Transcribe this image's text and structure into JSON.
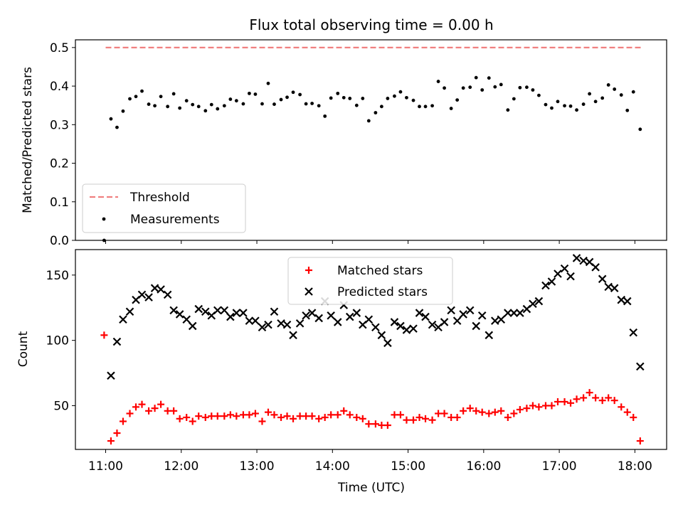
{
  "title": "Flux total observing time = 0.00 h",
  "xlabel": "Time (UTC)",
  "x_ticks": [
    "11:00",
    "12:00",
    "13:00",
    "14:00",
    "15:00",
    "16:00",
    "17:00",
    "18:00"
  ],
  "chart_data": [
    {
      "type": "scatter",
      "title": "Flux total observing time = 0.00 h",
      "ylabel": "Matched/Predicted stars",
      "xlabel": "Time (UTC)",
      "x_unit": "hours UTC",
      "xlim": [
        10.6,
        18.42
      ],
      "ylim": [
        0,
        0.52
      ],
      "y_ticks": [
        "0.0",
        "0.1",
        "0.2",
        "0.3",
        "0.4",
        "0.5"
      ],
      "legend": {
        "placement": "lower-left",
        "entries": [
          "Threshold",
          "Measurements"
        ]
      },
      "threshold": {
        "name": "Threshold",
        "value": 0.5,
        "x_range": [
          11.0,
          18.08
        ],
        "color": "#f08080",
        "style": "dashed"
      },
      "series": [
        {
          "name": "Measurements",
          "color": "#000000",
          "marker": "dot",
          "x": [
            10.98,
            11.07,
            11.15,
            11.23,
            11.32,
            11.4,
            11.48,
            11.57,
            11.65,
            11.73,
            11.82,
            11.9,
            11.98,
            12.07,
            12.15,
            12.23,
            12.32,
            12.4,
            12.48,
            12.57,
            12.65,
            12.73,
            12.82,
            12.9,
            12.98,
            13.07,
            13.15,
            13.23,
            13.32,
            13.4,
            13.48,
            13.57,
            13.65,
            13.73,
            13.82,
            13.9,
            13.98,
            14.07,
            14.15,
            14.23,
            14.32,
            14.4,
            14.48,
            14.57,
            14.65,
            14.73,
            14.82,
            14.9,
            14.98,
            15.07,
            15.15,
            15.23,
            15.32,
            15.4,
            15.48,
            15.57,
            15.65,
            15.73,
            15.82,
            15.9,
            15.98,
            16.07,
            16.15,
            16.23,
            16.32,
            16.4,
            16.48,
            16.57,
            16.65,
            16.73,
            16.82,
            16.9,
            16.98,
            17.07,
            17.15,
            17.23,
            17.32,
            17.4,
            17.48,
            17.57,
            17.65,
            17.73,
            17.82,
            17.9,
            17.98,
            18.07
          ],
          "y": [
            0.0,
            0.315,
            0.293,
            0.335,
            0.367,
            0.373,
            0.387,
            0.353,
            0.349,
            0.373,
            0.347,
            0.38,
            0.343,
            0.362,
            0.352,
            0.347,
            0.336,
            0.352,
            0.341,
            0.349,
            0.366,
            0.362,
            0.354,
            0.381,
            0.379,
            0.354,
            0.407,
            0.353,
            0.365,
            0.371,
            0.384,
            0.378,
            0.354,
            0.355,
            0.349,
            0.322,
            0.369,
            0.381,
            0.37,
            0.368,
            0.35,
            0.368,
            0.31,
            0.331,
            0.347,
            0.368,
            0.374,
            0.385,
            0.37,
            0.363,
            0.347,
            0.347,
            0.349,
            0.412,
            0.395,
            0.342,
            0.364,
            0.395,
            0.397,
            0.422,
            0.39,
            0.421,
            0.398,
            0.404,
            0.338,
            0.367,
            0.396,
            0.397,
            0.39,
            0.376,
            0.352,
            0.343,
            0.36,
            0.349,
            0.348,
            0.338,
            0.353,
            0.38,
            0.36,
            0.369,
            0.403,
            0.392,
            0.377,
            0.337,
            0.385,
            0.288
          ]
        }
      ]
    },
    {
      "type": "scatter",
      "ylabel": "Count",
      "xlabel": "Time (UTC)",
      "x_unit": "hours UTC",
      "xlim": [
        10.6,
        18.42
      ],
      "ylim": [
        16.5,
        169.5
      ],
      "y_ticks": [
        "50",
        "100",
        "150"
      ],
      "legend": {
        "placement": "top-center",
        "entries": [
          "Matched stars",
          "Predicted stars"
        ]
      },
      "series": [
        {
          "name": "Matched stars",
          "color": "#ff0000",
          "marker": "plus",
          "x": [
            10.98,
            11.07,
            11.15,
            11.23,
            11.32,
            11.4,
            11.48,
            11.57,
            11.65,
            11.73,
            11.82,
            11.9,
            11.98,
            12.07,
            12.15,
            12.23,
            12.32,
            12.4,
            12.48,
            12.57,
            12.65,
            12.73,
            12.82,
            12.9,
            12.98,
            13.07,
            13.15,
            13.23,
            13.32,
            13.4,
            13.48,
            13.57,
            13.65,
            13.73,
            13.82,
            13.9,
            13.98,
            14.07,
            14.15,
            14.23,
            14.32,
            14.4,
            14.48,
            14.57,
            14.65,
            14.73,
            14.82,
            14.9,
            14.98,
            15.07,
            15.15,
            15.23,
            15.32,
            15.4,
            15.48,
            15.57,
            15.65,
            15.73,
            15.82,
            15.9,
            15.98,
            16.07,
            16.15,
            16.23,
            16.32,
            16.4,
            16.48,
            16.57,
            16.65,
            16.73,
            16.82,
            16.9,
            16.98,
            17.07,
            17.15,
            17.23,
            17.32,
            17.4,
            17.48,
            17.57,
            17.65,
            17.73,
            17.82,
            17.9,
            17.98,
            18.07
          ],
          "y": [
            104,
            23,
            29,
            38,
            44,
            49,
            51,
            46,
            48,
            51,
            46,
            46,
            40,
            41,
            38,
            42,
            41,
            42,
            42,
            42,
            43,
            42,
            43,
            43,
            44,
            38,
            45,
            43,
            41,
            42,
            40,
            42,
            42,
            42,
            40,
            41,
            43,
            43,
            46,
            43,
            41,
            40,
            36,
            36,
            35,
            35,
            43,
            43,
            39,
            39,
            41,
            40,
            39,
            44,
            44,
            41,
            41,
            46,
            48,
            46,
            45,
            44,
            45,
            46,
            41,
            44,
            47,
            48,
            50,
            49,
            50,
            50,
            53,
            53,
            52,
            55,
            56,
            60,
            56,
            54,
            56,
            54,
            49,
            45,
            41,
            23
          ]
        },
        {
          "name": "Predicted stars",
          "color": "#000000",
          "marker": "x",
          "x": [
            11.07,
            11.15,
            11.23,
            11.32,
            11.4,
            11.48,
            11.57,
            11.65,
            11.73,
            11.82,
            11.9,
            11.98,
            12.07,
            12.15,
            12.23,
            12.32,
            12.4,
            12.48,
            12.57,
            12.65,
            12.73,
            12.82,
            12.9,
            12.98,
            13.07,
            13.15,
            13.23,
            13.32,
            13.4,
            13.48,
            13.57,
            13.65,
            13.73,
            13.82,
            13.9,
            13.98,
            14.07,
            14.15,
            14.23,
            14.32,
            14.4,
            14.48,
            14.57,
            14.65,
            14.73,
            14.82,
            14.9,
            14.98,
            15.07,
            15.15,
            15.23,
            15.32,
            15.4,
            15.48,
            15.57,
            15.65,
            15.73,
            15.82,
            15.9,
            15.98,
            16.07,
            16.15,
            16.23,
            16.32,
            16.4,
            16.48,
            16.57,
            16.65,
            16.73,
            16.82,
            16.9,
            16.98,
            17.07,
            17.15,
            17.23,
            17.32,
            17.4,
            17.48,
            17.57,
            17.65,
            17.73,
            17.82,
            17.9,
            17.98,
            18.07
          ],
          "y": [
            73,
            99,
            116,
            122,
            131,
            135,
            133,
            140,
            139,
            135,
            123,
            120,
            116,
            111,
            124,
            122,
            119,
            123,
            123,
            118,
            121,
            121,
            115,
            115,
            110,
            112,
            122,
            113,
            112,
            104,
            113,
            119,
            121,
            117,
            130,
            119,
            114,
            127,
            118,
            121,
            112,
            116,
            110,
            104,
            98,
            114,
            111,
            108,
            109,
            121,
            118,
            112,
            110,
            114,
            123,
            115,
            120,
            123,
            111,
            119,
            104,
            115,
            116,
            121,
            121,
            121,
            124,
            128,
            130,
            142,
            145,
            151,
            155,
            149,
            163,
            161,
            160,
            156,
            147,
            141,
            140,
            131,
            130,
            106,
            80
          ]
        }
      ]
    }
  ]
}
